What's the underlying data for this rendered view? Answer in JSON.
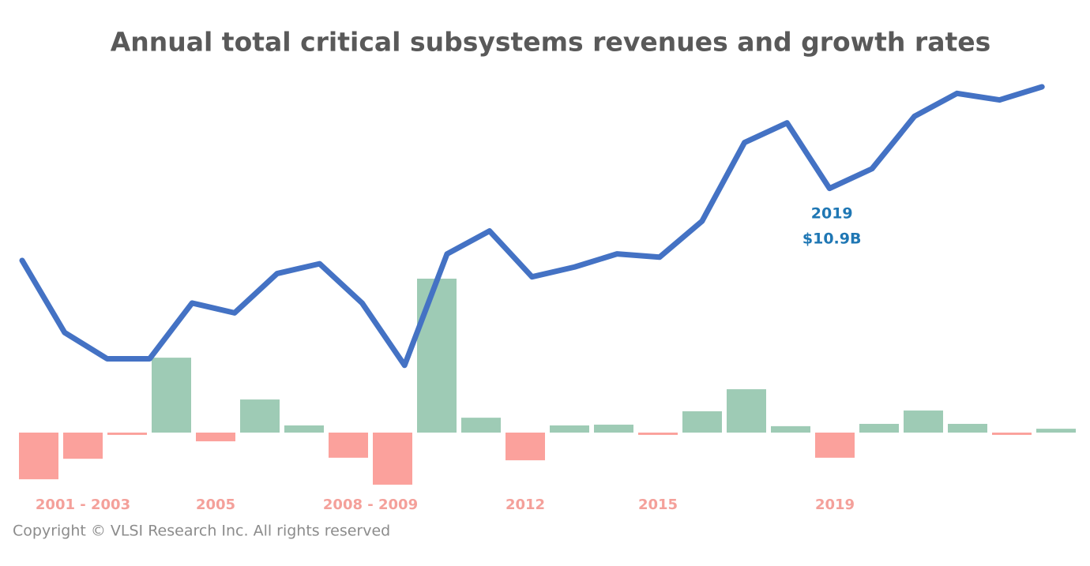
{
  "chart_data": {
    "type": "line-bar",
    "title": "Annual total critical subsystems revenues and growth rates",
    "series": [
      {
        "type": "line",
        "color": "#4472c4",
        "values": [
          8.7,
          6.5,
          5.7,
          5.7,
          7.4,
          7.1,
          8.3,
          8.6,
          7.4,
          5.5,
          8.9,
          9.6,
          8.2,
          8.5,
          8.9,
          8.8,
          9.9,
          12.3,
          12.9,
          10.9,
          11.5,
          13.1,
          13.8,
          13.6,
          14.0
        ]
      },
      {
        "type": "bar",
        "positive_color": "#9ecbb5",
        "negative_color": "#fba19c",
        "values": [
          null,
          -18.2,
          -10.2,
          -0.9,
          29.2,
          -3.4,
          12.9,
          2.8,
          -9.8,
          -20.3,
          60,
          5.8,
          -10.8,
          2.8,
          3.1,
          -0.9,
          8.3,
          16.9,
          2.5,
          -9.8,
          3.4,
          8.6,
          3.4,
          -0.9,
          1.5
        ]
      }
    ],
    "annotations": [
      {
        "text": "2001 - 2003",
        "span": [
          1,
          3
        ]
      },
      {
        "text": "2005",
        "span": [
          5,
          5
        ]
      },
      {
        "text": "2008 - 2009",
        "span": [
          8,
          9
        ]
      },
      {
        "text": "2012",
        "span": [
          12,
          12
        ]
      },
      {
        "text": "2015",
        "span": [
          15,
          15
        ]
      },
      {
        "text": "2019",
        "span": [
          19,
          19
        ]
      }
    ],
    "point_label": {
      "index": 19,
      "year": "2019",
      "value_label": "$10.9B"
    },
    "footer": "Copyright ©  VLSI Research Inc. All rights reserved"
  }
}
